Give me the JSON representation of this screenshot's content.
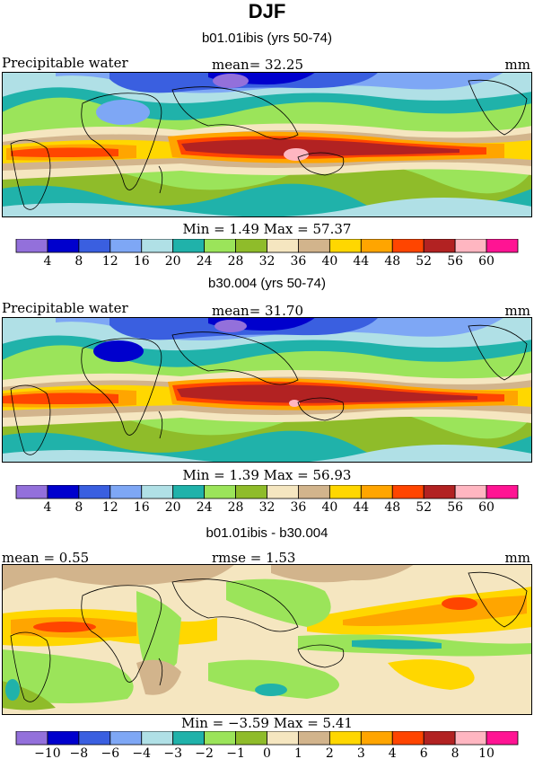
{
  "figure_title": "DJF",
  "colors": {
    "palette": [
      "#9370db",
      "#0000cd",
      "#3a5fe0",
      "#7ea7f5",
      "#b0e0e6",
      "#20b2aa",
      "#9be45a",
      "#8fbc2a",
      "#f5e6c0",
      "#d2b48c",
      "#ffd700",
      "#ffa500",
      "#ff4500",
      "#b22222",
      "#ffb6c1",
      "#ff1493"
    ]
  },
  "panels": [
    {
      "title": "b01.01ibis (yrs 50-74)",
      "left_label": "Precipitable water",
      "mid_label": "mean=  32.25",
      "unit": "mm",
      "minmax": "Min =    1.49 Max =  57.37"
    },
    {
      "title": "b30.004 (yrs 50-74)",
      "left_label": "Precipitable water",
      "mid_label": "mean=  31.70",
      "unit": "mm",
      "minmax": "Min =    1.39 Max =  56.93"
    },
    {
      "title": "b01.01ibis - b30.004",
      "left_label": "mean =    0.55",
      "mid_label": "rmse =    1.53",
      "unit": "mm",
      "minmax": "Min =  −3.59 Max =    5.41"
    }
  ],
  "chart_data": [
    {
      "type": "heatmap",
      "title": "b01.01ibis (yrs 50-74)",
      "variable": "Precipitable water",
      "mean": 32.25,
      "min": 1.49,
      "max": 57.37,
      "units": "mm",
      "colorbar_levels": [
        "4",
        "8",
        "12",
        "16",
        "20",
        "24",
        "28",
        "32",
        "36",
        "40",
        "44",
        "48",
        "52",
        "56",
        "60"
      ]
    },
    {
      "type": "heatmap",
      "title": "b30.004 (yrs 50-74)",
      "variable": "Precipitable water",
      "mean": 31.7,
      "min": 1.39,
      "max": 56.93,
      "units": "mm",
      "colorbar_levels": [
        "4",
        "8",
        "12",
        "16",
        "20",
        "24",
        "28",
        "32",
        "36",
        "40",
        "44",
        "48",
        "52",
        "56",
        "60"
      ]
    },
    {
      "type": "heatmap",
      "title": "b01.01ibis - b30.004",
      "mean": 0.55,
      "rmse": 1.53,
      "min": -3.59,
      "max": 5.41,
      "units": "mm",
      "colorbar_levels": [
        "−10",
        "−8",
        "−6",
        "−4",
        "−3",
        "−2",
        "−1",
        "0",
        "1",
        "2",
        "3",
        "4",
        "6",
        "8",
        "10"
      ]
    }
  ]
}
